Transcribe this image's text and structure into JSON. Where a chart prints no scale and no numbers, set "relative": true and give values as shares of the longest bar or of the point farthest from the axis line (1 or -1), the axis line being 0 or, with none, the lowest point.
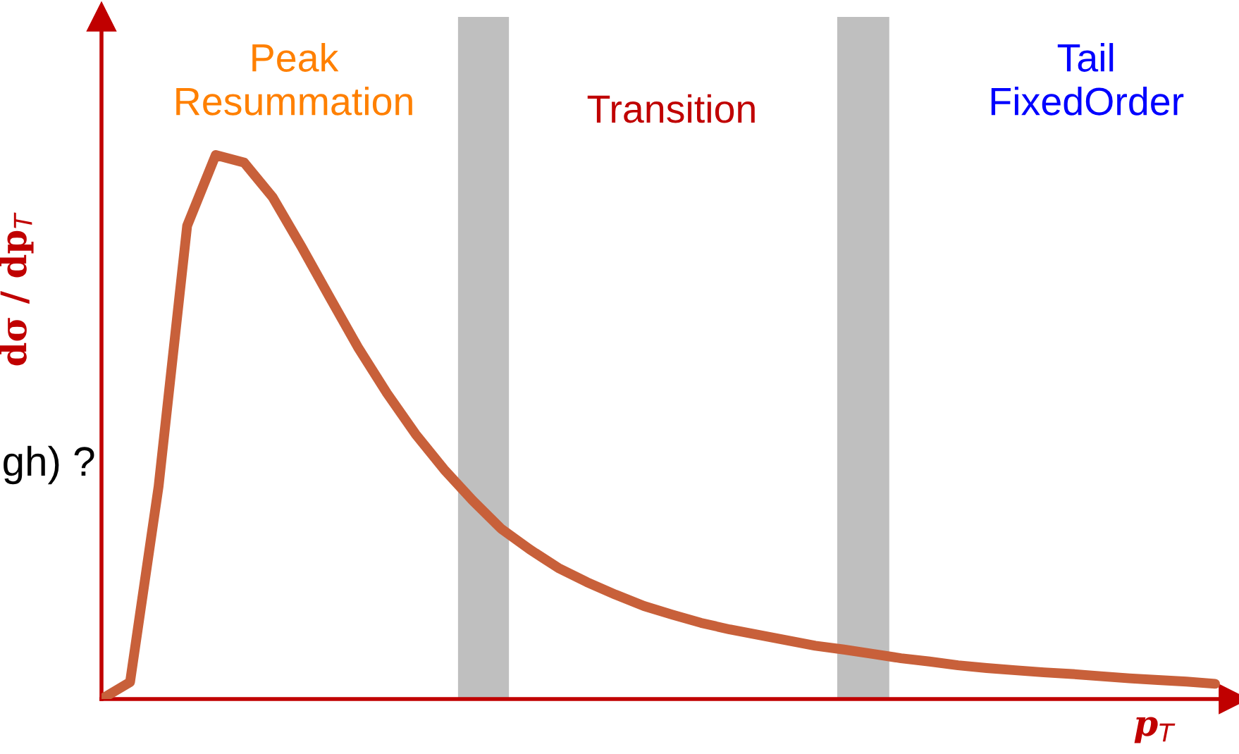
{
  "chart_data": {
    "type": "line",
    "relative": true,
    "xlabel": "p$_{T}$",
    "ylabel": "dσ / dp$_{T}$",
    "categories": [
      null,
      null,
      null,
      null,
      null,
      null,
      null,
      null,
      null,
      null,
      null,
      null,
      null,
      null,
      null,
      null,
      null,
      null,
      null,
      null,
      null,
      null,
      null,
      null,
      null,
      null,
      null,
      null,
      null,
      null,
      null,
      null,
      null,
      null,
      null,
      null,
      null,
      null,
      null,
      null
    ],
    "series": [
      {
        "color": "#c8603a",
        "values": [
          0,
          0.031,
          0.391,
          0.87,
          1.0,
          0.986,
          0.922,
          0.832,
          0.738,
          0.645,
          0.562,
          0.487,
          0.422,
          0.365,
          0.313,
          0.275,
          0.241,
          0.215,
          0.192,
          0.171,
          0.155,
          0.14,
          0.128,
          0.118,
          0.108,
          0.098,
          0.091,
          0.083,
          0.075,
          0.069,
          0.062,
          0.057,
          0.053,
          0.049,
          0.046,
          0.042,
          0.038,
          0.035,
          0.032,
          0.028
        ]
      }
    ],
    "annotations": [
      "Peak\nResummation",
      "Transition",
      "Tail\nFixedOrder",
      "gh) ?"
    ]
  }
}
